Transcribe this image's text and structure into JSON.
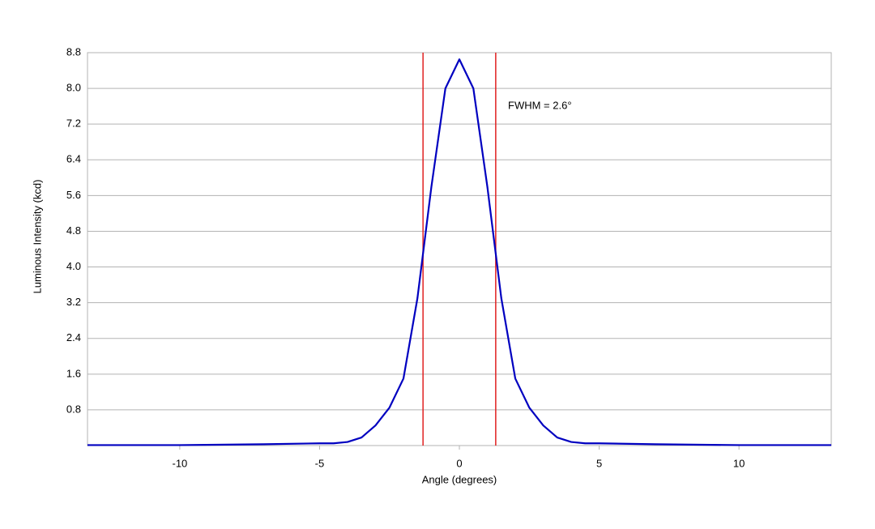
{
  "chart_data": {
    "type": "line",
    "x_label": "Angle (degrees)",
    "y_label": "Luminous Intensity (kcd)",
    "annotation": "FWHM = 2.6°",
    "xlim": [
      -13.3,
      13.3
    ],
    "xticks": [
      -10,
      -5,
      0,
      5,
      10
    ],
    "ylim": [
      0,
      8.8
    ],
    "yticks": [
      0.8,
      1.6,
      2.4,
      3.2,
      {
        "value": 4,
        "label": "4.0"
      },
      4.8,
      5.6,
      6.4,
      7.2,
      {
        "value": 8,
        "label": "8.0"
      },
      8.8
    ],
    "grid": true,
    "vlines": [
      -1.3,
      1.3
    ],
    "vline_color": "#e02020",
    "series": [
      {
        "color": "#0000c0",
        "x": [
          -13.3,
          -10,
          -7,
          -5,
          -4.5,
          -4,
          -3.5,
          -3,
          -2.5,
          -2,
          -1.5,
          -1,
          -0.5,
          0,
          0.5,
          1,
          1.5,
          2,
          2.5,
          3,
          3.5,
          4,
          4.5,
          5,
          7,
          10,
          13.3
        ],
        "values": [
          0.01,
          0.01,
          0.03,
          0.05,
          0.05,
          0.08,
          0.18,
          0.45,
          0.85,
          1.5,
          3.3,
          5.8,
          8.0,
          8.65,
          8.0,
          5.8,
          3.3,
          1.5,
          0.85,
          0.45,
          0.18,
          0.08,
          0.05,
          0.05,
          0.03,
          0.01,
          0.01
        ]
      }
    ]
  }
}
